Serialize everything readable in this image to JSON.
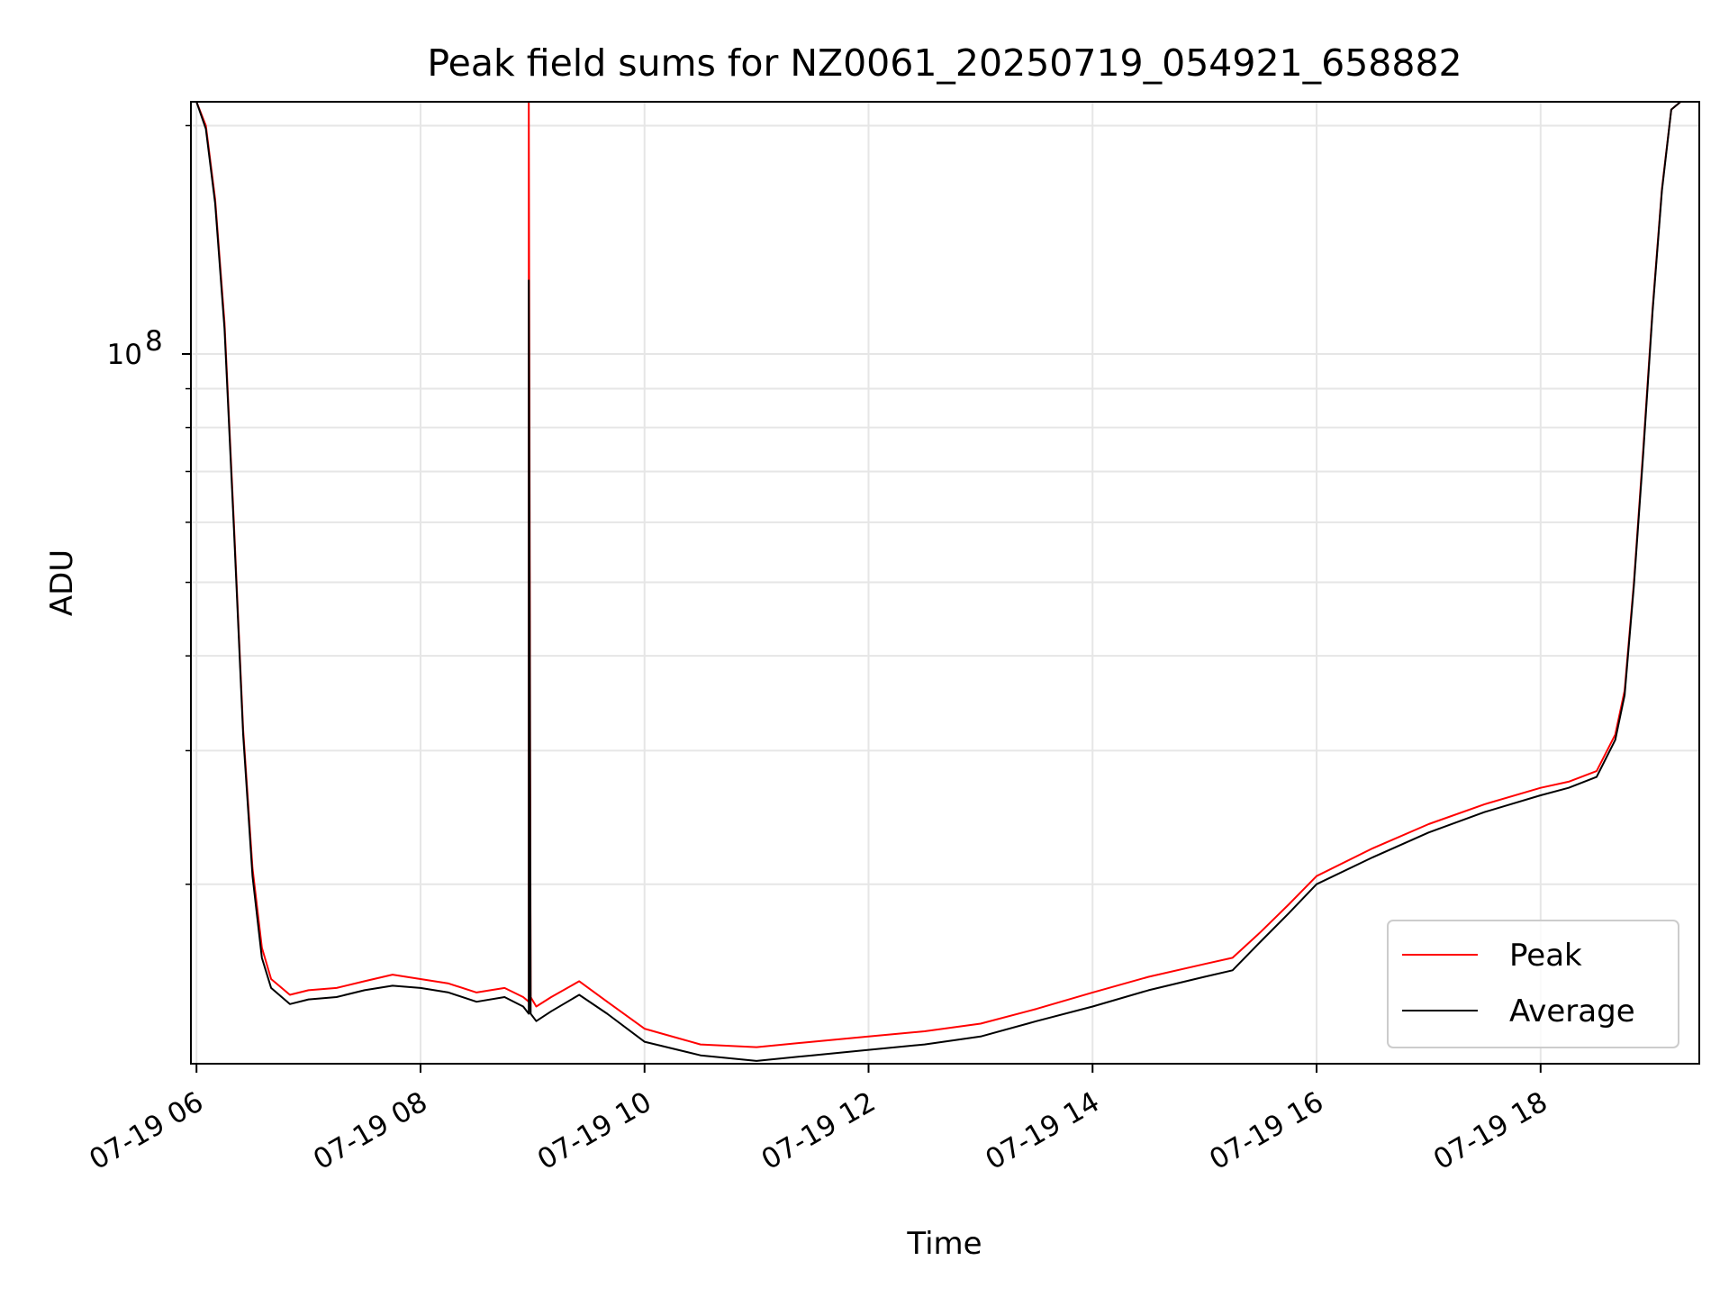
{
  "chart_data": {
    "type": "line",
    "title": "Peak field sums for NZ0061_20250719_054921_658882",
    "xlabel": "Time",
    "ylabel": "ADU",
    "yscale": "log",
    "xlim": [
      "2025-07-19 05:57",
      "2025-07-19 19:25"
    ],
    "ylim": [
      11600000,
      215000000
    ],
    "grid": true,
    "legend_position": "bottom-right",
    "x_ticks": [
      {
        "value": "2025-07-19 06:00",
        "label": "07-19 06"
      },
      {
        "value": "2025-07-19 08:00",
        "label": "07-19 08"
      },
      {
        "value": "2025-07-19 10:00",
        "label": "07-19 10"
      },
      {
        "value": "2025-07-19 12:00",
        "label": "07-19 12"
      },
      {
        "value": "2025-07-19 14:00",
        "label": "07-19 14"
      },
      {
        "value": "2025-07-19 16:00",
        "label": "07-19 16"
      },
      {
        "value": "2025-07-19 18:00",
        "label": "07-19 18"
      }
    ],
    "y_major_tick": {
      "value": 100000000,
      "label_base": "10",
      "label_exp": "8"
    },
    "y_minor_ticks": [
      20000000,
      30000000,
      40000000,
      50000000,
      60000000,
      70000000,
      80000000,
      90000000,
      200000000
    ],
    "colors": {
      "peak": "#ff0000",
      "average": "#000000",
      "grid": "#e6e6e6"
    },
    "series": [
      {
        "name": "Peak",
        "color": "#ff0000",
        "x": [
          "2025-07-19 06:00",
          "2025-07-19 06:05",
          "2025-07-19 06:10",
          "2025-07-19 06:15",
          "2025-07-19 06:20",
          "2025-07-19 06:25",
          "2025-07-19 06:30",
          "2025-07-19 06:35",
          "2025-07-19 06:40",
          "2025-07-19 06:50",
          "2025-07-19 07:00",
          "2025-07-19 07:15",
          "2025-07-19 07:30",
          "2025-07-19 07:45",
          "2025-07-19 08:00",
          "2025-07-19 08:15",
          "2025-07-19 08:30",
          "2025-07-19 08:45",
          "2025-07-19 08:55",
          "2025-07-19 08:58",
          "2025-07-19 08:58",
          "2025-07-19 08:59",
          "2025-07-19 09:02",
          "2025-07-19 09:10",
          "2025-07-19 09:25",
          "2025-07-19 09:40",
          "2025-07-19 10:00",
          "2025-07-19 10:30",
          "2025-07-19 11:00",
          "2025-07-19 11:30",
          "2025-07-19 12:00",
          "2025-07-19 12:30",
          "2025-07-19 13:00",
          "2025-07-19 13:30",
          "2025-07-19 14:00",
          "2025-07-19 14:30",
          "2025-07-19 15:00",
          "2025-07-19 15:15",
          "2025-07-19 15:30",
          "2025-07-19 15:45",
          "2025-07-19 16:00",
          "2025-07-19 16:30",
          "2025-07-19 17:00",
          "2025-07-19 17:30",
          "2025-07-19 18:00",
          "2025-07-19 18:15",
          "2025-07-19 18:30",
          "2025-07-19 18:40",
          "2025-07-19 18:45",
          "2025-07-19 18:50",
          "2025-07-19 18:55",
          "2025-07-19 19:00",
          "2025-07-19 19:05",
          "2025-07-19 19:10",
          "2025-07-19 19:15"
        ],
        "y": [
          215000000,
          200000000,
          160000000,
          110000000,
          60000000,
          32000000,
          21000000,
          16500000,
          15000000,
          14300000,
          14500000,
          14600000,
          14900000,
          15200000,
          15000000,
          14800000,
          14400000,
          14600000,
          14200000,
          14000000,
          215000000,
          14200000,
          13800000,
          14200000,
          14900000,
          14000000,
          12900000,
          12300000,
          12200000,
          12400000,
          12600000,
          12800000,
          13100000,
          13700000,
          14400000,
          15100000,
          15700000,
          16000000,
          17300000,
          18800000,
          20500000,
          22300000,
          24000000,
          25500000,
          26800000,
          27300000,
          28200000,
          31500000,
          36000000,
          50000000,
          75000000,
          115000000,
          165000000,
          210000000,
          215000000
        ]
      },
      {
        "name": "Average",
        "color": "#000000",
        "x": [
          "2025-07-19 06:00",
          "2025-07-19 06:05",
          "2025-07-19 06:10",
          "2025-07-19 06:15",
          "2025-07-19 06:20",
          "2025-07-19 06:25",
          "2025-07-19 06:30",
          "2025-07-19 06:35",
          "2025-07-19 06:40",
          "2025-07-19 06:50",
          "2025-07-19 07:00",
          "2025-07-19 07:15",
          "2025-07-19 07:30",
          "2025-07-19 07:45",
          "2025-07-19 08:00",
          "2025-07-19 08:15",
          "2025-07-19 08:30",
          "2025-07-19 08:45",
          "2025-07-19 08:55",
          "2025-07-19 08:58",
          "2025-07-19 08:58",
          "2025-07-19 08:59",
          "2025-07-19 09:02",
          "2025-07-19 09:10",
          "2025-07-19 09:25",
          "2025-07-19 09:40",
          "2025-07-19 10:00",
          "2025-07-19 10:30",
          "2025-07-19 11:00",
          "2025-07-19 11:30",
          "2025-07-19 12:00",
          "2025-07-19 12:30",
          "2025-07-19 13:00",
          "2025-07-19 13:30",
          "2025-07-19 14:00",
          "2025-07-19 14:30",
          "2025-07-19 15:00",
          "2025-07-19 15:15",
          "2025-07-19 15:30",
          "2025-07-19 15:45",
          "2025-07-19 16:00",
          "2025-07-19 16:30",
          "2025-07-19 17:00",
          "2025-07-19 17:30",
          "2025-07-19 18:00",
          "2025-07-19 18:15",
          "2025-07-19 18:30",
          "2025-07-19 18:40",
          "2025-07-19 18:45",
          "2025-07-19 18:50",
          "2025-07-19 18:55",
          "2025-07-19 19:00",
          "2025-07-19 19:05",
          "2025-07-19 19:10",
          "2025-07-19 19:15"
        ],
        "y": [
          215000000,
          198000000,
          158000000,
          108000000,
          59000000,
          31500000,
          20500000,
          16000000,
          14600000,
          13900000,
          14100000,
          14200000,
          14500000,
          14700000,
          14600000,
          14400000,
          14000000,
          14200000,
          13800000,
          13500000,
          125000000,
          13500000,
          13200000,
          13600000,
          14300000,
          13500000,
          12400000,
          11900000,
          11700000,
          11900000,
          12100000,
          12300000,
          12600000,
          13200000,
          13800000,
          14500000,
          15100000,
          15400000,
          16800000,
          18300000,
          20000000,
          21700000,
          23400000,
          24900000,
          26200000,
          26800000,
          27700000,
          31000000,
          35500000,
          49500000,
          74000000,
          114000000,
          164000000,
          210000000,
          215000000
        ]
      }
    ]
  }
}
